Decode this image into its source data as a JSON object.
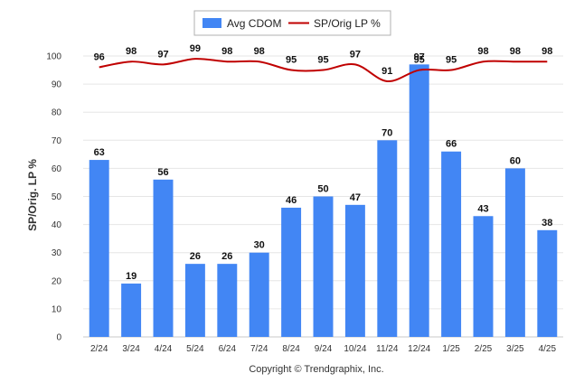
{
  "chart_data": {
    "type": "bar",
    "categories": [
      "2/24",
      "3/24",
      "4/24",
      "5/24",
      "6/24",
      "7/24",
      "8/24",
      "9/24",
      "10/24",
      "11/24",
      "12/24",
      "1/25",
      "2/25",
      "3/25",
      "4/25"
    ],
    "series": [
      {
        "name": "Avg CDOM",
        "type": "bar",
        "color": "#4286f4",
        "values": [
          63,
          19,
          56,
          26,
          26,
          30,
          46,
          50,
          47,
          70,
          97,
          66,
          43,
          60,
          38
        ]
      },
      {
        "name": "SP/Orig LP %",
        "type": "line",
        "color": "#c00000",
        "values": [
          96,
          98,
          97,
          99,
          98,
          98,
          95,
          95,
          97,
          91,
          95,
          95,
          98,
          98,
          98
        ]
      }
    ],
    "ylabel": "SP/Orig. LP %",
    "ylim": [
      0,
      100
    ],
    "yticks": [
      0,
      10,
      20,
      30,
      40,
      50,
      60,
      70,
      80,
      90,
      100
    ],
    "grid": true,
    "legend_position": "top-center",
    "footer": "Copyright © Trendgraphix, Inc."
  }
}
